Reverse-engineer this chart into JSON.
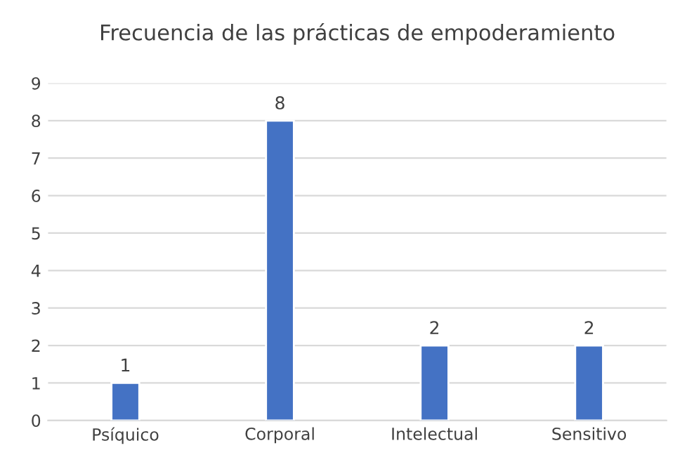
{
  "chart_data": {
    "type": "bar",
    "title": "Frecuencia de las prácticas de empoderamiento",
    "categories": [
      "Psíquico",
      "Corporal",
      "Intelectual",
      "Sensitivo"
    ],
    "values": [
      1,
      8,
      2,
      2
    ],
    "color": "#4472c4",
    "ylim": [
      0,
      9
    ],
    "yticks": [
      0,
      1,
      2,
      3,
      4,
      5,
      6,
      7,
      8,
      9
    ],
    "grid": "y",
    "data_labels": true,
    "legend": false
  }
}
